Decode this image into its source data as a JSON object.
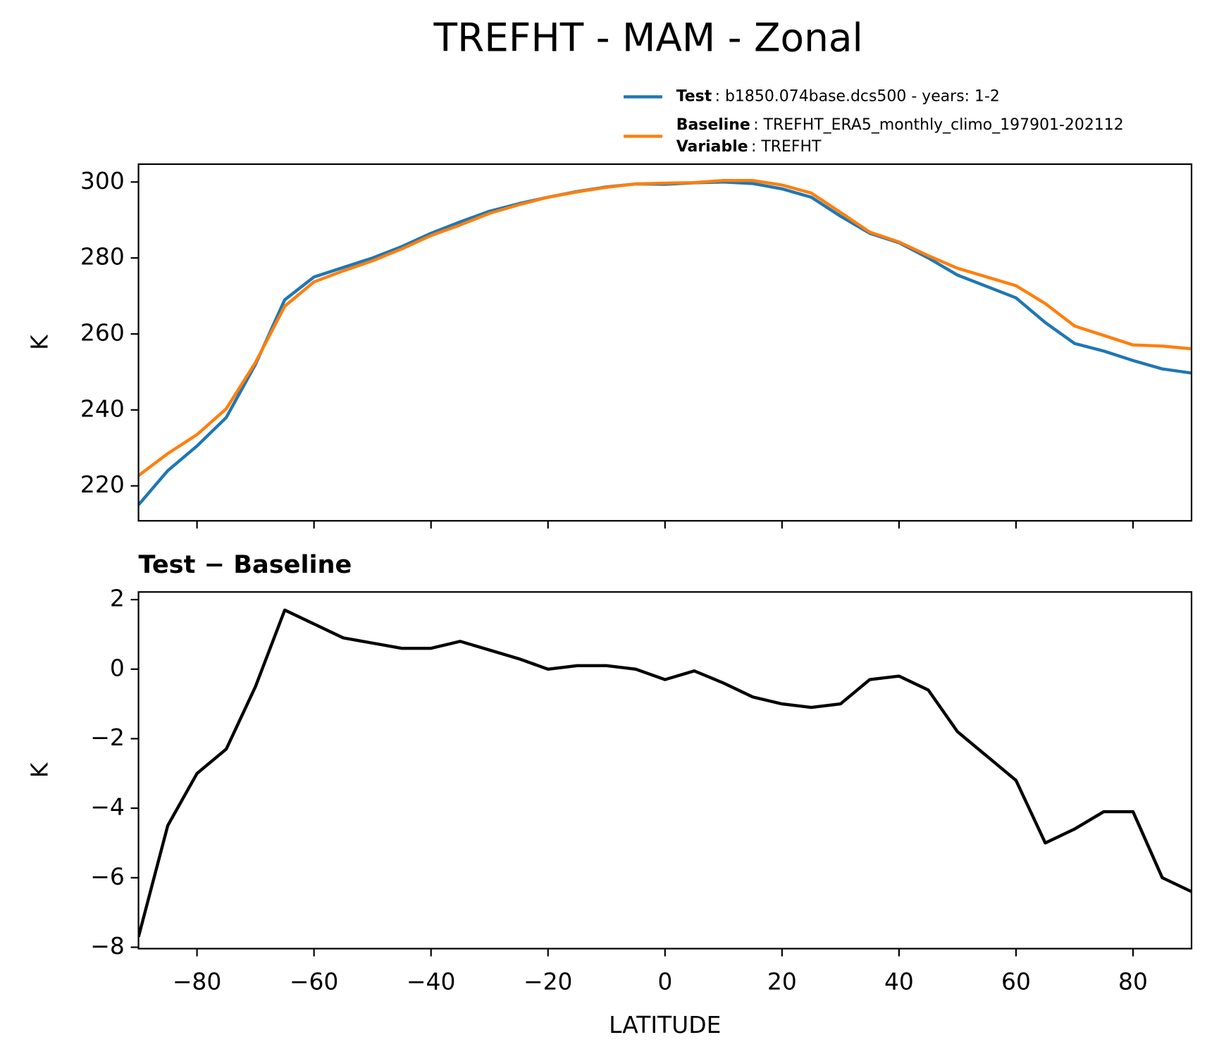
{
  "chart_data": [
    {
      "type": "line",
      "title": "TREFHT - MAM - Zonal",
      "y_label": "K",
      "x": [
        -90,
        -85,
        -80,
        -75,
        -70,
        -65,
        -60,
        -55,
        -50,
        -45,
        -40,
        -35,
        -30,
        -25,
        -20,
        -15,
        -10,
        -5,
        0,
        5,
        10,
        15,
        20,
        25,
        30,
        35,
        40,
        45,
        50,
        55,
        60,
        65,
        70,
        75,
        80,
        85,
        90
      ],
      "series": [
        {
          "name": "Test",
          "description": ": b1850.074base.dcs500 - years: 1-2",
          "color": "#1f77b4",
          "values": [
            215,
            224,
            230.5,
            238,
            252,
            269,
            275,
            277.5,
            280,
            283,
            286.5,
            289.5,
            292.3,
            294.3,
            296,
            297.5,
            298.7,
            299.5,
            299.4,
            299.8,
            300,
            299.6,
            298.2,
            296,
            291,
            286.5,
            284,
            280,
            275.5,
            272.5,
            269.5,
            263,
            257.5,
            255.5,
            253,
            250.8,
            249.7
          ]
        },
        {
          "name": "Baseline",
          "description": ": TREFHT_ERA5_monthly_climo_197901-202112",
          "variable_label": "Variable",
          "variable_value": ": TREFHT",
          "color": "#ff7f0e",
          "values": [
            222.7,
            228.5,
            233.5,
            240.3,
            252.5,
            267.3,
            273.7,
            276.6,
            279.25,
            282.4,
            285.9,
            288.7,
            291.75,
            294,
            296,
            297.4,
            298.6,
            299.5,
            299.7,
            299.85,
            300.4,
            300.4,
            299.2,
            297.1,
            292,
            286.8,
            284.2,
            280.6,
            277.3,
            275,
            272.7,
            268,
            262.1,
            259.6,
            257.1,
            256.8,
            256.1
          ]
        }
      ],
      "xlim": [
        -90,
        90
      ],
      "xticks": [
        -80,
        -60,
        -40,
        -20,
        0,
        20,
        40,
        60,
        80
      ],
      "ylim": [
        210.8,
        304.7
      ],
      "yticks": [
        220,
        240,
        260,
        280,
        300
      ]
    },
    {
      "type": "line",
      "title": "Test − Baseline",
      "y_label": "K",
      "x_label": "LATITUDE",
      "x": [
        -90,
        -85,
        -80,
        -75,
        -70,
        -65,
        -60,
        -55,
        -50,
        -45,
        -40,
        -35,
        -30,
        -25,
        -20,
        -15,
        -10,
        -5,
        0,
        5,
        10,
        15,
        20,
        25,
        30,
        35,
        40,
        45,
        50,
        55,
        60,
        65,
        70,
        75,
        80,
        85,
        90
      ],
      "series": [
        {
          "color": "#000000",
          "values": [
            -7.7,
            -4.5,
            -3,
            -2.3,
            -0.5,
            1.7,
            1.3,
            0.9,
            0.75,
            0.6,
            0.6,
            0.8,
            0.55,
            0.3,
            0,
            0.1,
            0.1,
            0,
            -0.3,
            -0.05,
            -0.4,
            -0.8,
            -1,
            -1.1,
            -1,
            -0.3,
            -0.2,
            -0.6,
            -1.8,
            -2.5,
            -3.2,
            -5,
            -4.6,
            -4.1,
            -4.1,
            -6,
            -6.4
          ]
        }
      ],
      "xlim": [
        -90,
        90
      ],
      "xticks": [
        {
          "value": -80,
          "label": "−80"
        },
        {
          "value": -60,
          "label": "−60"
        },
        {
          "value": -40,
          "label": "−40"
        },
        {
          "value": -20,
          "label": "−20"
        },
        0,
        20,
        40,
        60,
        80
      ],
      "ylim": [
        -8.04,
        2.22
      ],
      "yticks": [
        {
          "value": -8,
          "label": "−8"
        },
        {
          "value": -6,
          "label": "−6"
        },
        {
          "value": -4,
          "label": "−4"
        },
        {
          "value": -2,
          "label": "−2"
        },
        0,
        2
      ]
    }
  ]
}
